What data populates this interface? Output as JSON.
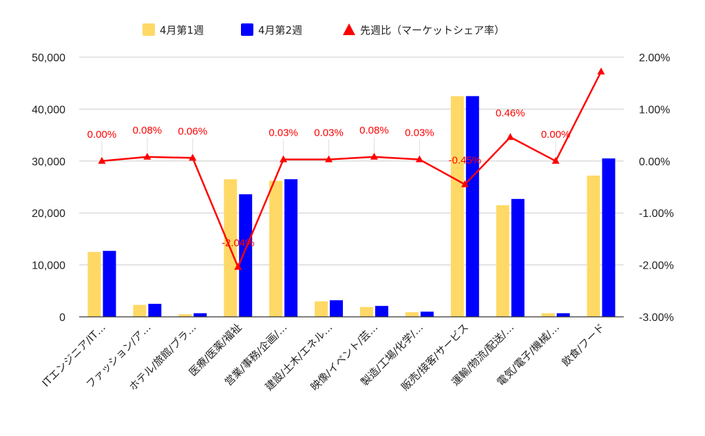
{
  "chart_data": {
    "type": "bar",
    "title": "",
    "xlabel": "",
    "ylabel": "",
    "y2label": "",
    "categories": [
      "ITエンジニア/IT…",
      "ファッション/ア…",
      "ホテル/旅館/ブラ…",
      "医療/医薬/福祉",
      "営業/事務/企画/…",
      "建設/土木/エネル…",
      "映像/イベント/芸…",
      "製造/工場/化学/…",
      "販売/接客/サービス",
      "運輸/物流/配送/…",
      "電気/電子/機械/…",
      "飲食/フード"
    ],
    "series": [
      {
        "name": "4月第1週",
        "type": "bar",
        "axis": "left",
        "color": "#ffd966",
        "values": [
          12500,
          2300,
          500,
          26500,
          26200,
          3000,
          1900,
          900,
          42500,
          21500,
          700,
          27200
        ]
      },
      {
        "name": "4月第2週",
        "type": "bar",
        "axis": "left",
        "color": "#0000ff",
        "values": [
          12700,
          2500,
          700,
          23600,
          26500,
          3200,
          2100,
          1000,
          42500,
          22700,
          700,
          30500
        ]
      },
      {
        "name": "先週比（マーケットシェア率）",
        "type": "line",
        "axis": "right",
        "color": "#ff0000",
        "values": [
          0.0,
          0.08,
          0.06,
          -2.04,
          0.03,
          0.03,
          0.08,
          0.03,
          -0.45,
          0.46,
          0.0,
          1.72
        ],
        "labels": [
          "0.00%",
          "0.08%",
          "0.06%",
          "-2.04%",
          "0.03%",
          "0.03%",
          "0.08%",
          "0.03%",
          "-0.45%",
          "0.46%",
          "0.00%",
          ""
        ]
      }
    ],
    "ylim": [
      0,
      50000
    ],
    "yticks": [
      "0",
      "10,000",
      "20,000",
      "30,000",
      "40,000",
      "50,000"
    ],
    "y2lim": [
      -3,
      2
    ],
    "y2ticks": [
      "-3.00%",
      "-2.00%",
      "-1.00%",
      "0.00%",
      "1.00%",
      "2.00%"
    ],
    "grid": true,
    "legend_position": "top"
  }
}
